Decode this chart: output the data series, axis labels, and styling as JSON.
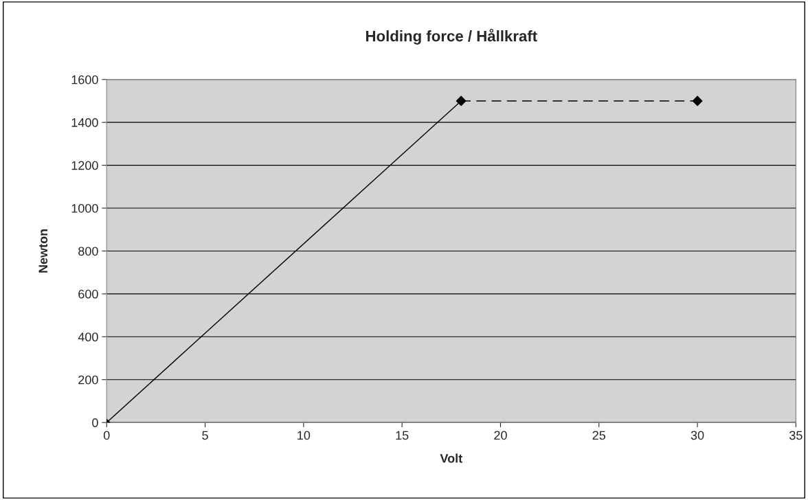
{
  "chart_data": {
    "type": "line",
    "title": "Holding force / Hållkraft",
    "xlabel": "Volt",
    "ylabel": "Newton",
    "series": [
      {
        "x": [
          0,
          18
        ],
        "values": [
          0,
          1500
        ],
        "color": "#000000",
        "line_style": "solid"
      },
      {
        "x": [
          18,
          30
        ],
        "values": [
          1500,
          1500
        ],
        "color": "#000000",
        "line_style": "dashed"
      }
    ],
    "xlim": [
      0,
      35
    ],
    "xticks": [
      0,
      5,
      10,
      15,
      20,
      25,
      30,
      35
    ],
    "ylim": [
      0,
      1600
    ],
    "yticks": [
      0,
      200,
      400,
      600,
      800,
      1000,
      1200,
      1400,
      1600
    ],
    "grid": "y",
    "marker": "diamond",
    "legend": false
  }
}
